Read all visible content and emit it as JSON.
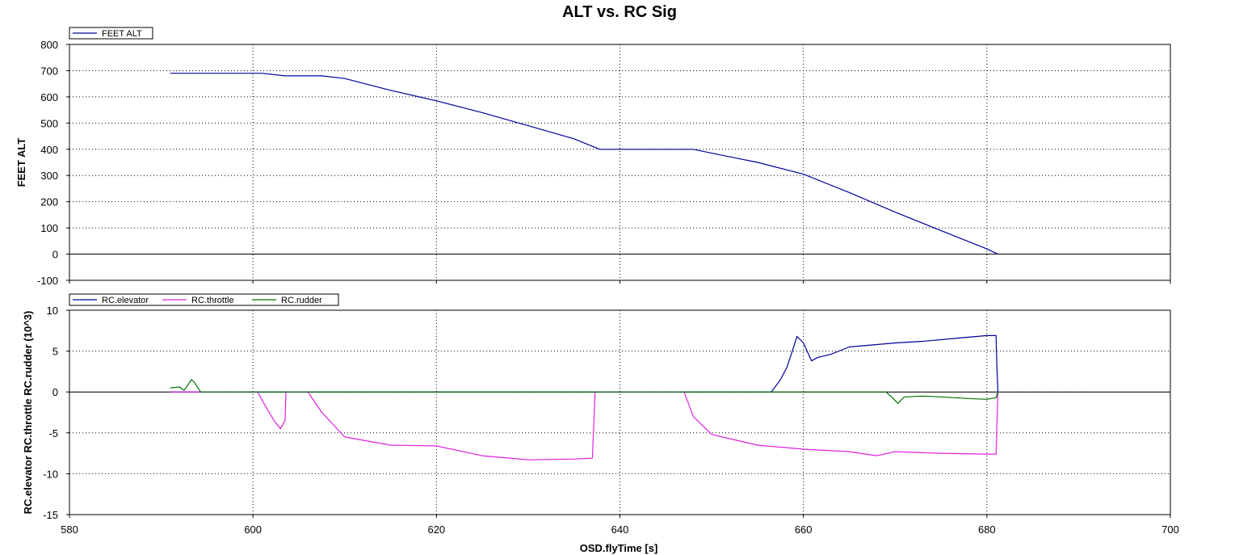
{
  "chart_data": {
    "type": "line",
    "title": "ALT vs. RC Sig",
    "xlabel": "OSD.flyTime [s]",
    "xlim": [
      580,
      700
    ],
    "xticks": [
      580,
      600,
      620,
      640,
      660,
      680,
      700
    ],
    "colors": {
      "elevator": "#000099",
      "throttle": "#e020e0",
      "rudder": "#007000",
      "alt": "#000099"
    },
    "panels": [
      {
        "ylabel": "FEET ALT",
        "ylim": [
          -100,
          800
        ],
        "yticks": [
          800,
          700,
          600,
          500,
          400,
          300,
          200,
          100,
          0,
          -100
        ],
        "legend_position": "top-left",
        "grid": true,
        "series": [
          {
            "name": "FEET ALT",
            "x": [
              591,
              601,
              603.5,
              607.5,
              610,
              615,
              620,
              625,
              630,
              635,
              637.8,
              648,
              650,
              655,
              660,
              665,
              670,
              675,
              680,
              681.2
            ],
            "y": [
              690,
              690,
              680,
              680,
              670,
              625,
              585,
              540,
              490,
              440,
              400,
              400,
              385,
              350,
              305,
              235,
              160,
              90,
              20,
              0
            ]
          }
        ]
      },
      {
        "ylabel": "RC.elevator RC.throttle RC.rudder (10^3)",
        "ylim": [
          -15,
          10
        ],
        "yticks": [
          10,
          5,
          0,
          -5,
          -10,
          -15
        ],
        "legend_position": "top-left",
        "grid": true,
        "series": [
          {
            "name": "RC.elevator",
            "x": [
              591,
              656.5,
              657.5,
              658.2,
              658.8,
              659.3,
              660,
              660.4,
              660.9,
              661.5,
              663,
              665,
              670,
              673,
              677,
              680,
              681,
              681.1,
              681.2
            ],
            "y": [
              0,
              0,
              1.5,
              3,
              5,
              6.8,
              6,
              5,
              3.8,
              4.2,
              4.6,
              5.5,
              6,
              6.2,
              6.6,
              6.9,
              6.9,
              3,
              0
            ]
          },
          {
            "name": "RC.throttle",
            "x": [
              591,
              600.5,
              601.5,
              602.3,
              603,
              603.5,
              603.6,
              606,
              607.5,
              610,
              615,
              620,
              625,
              630,
              635,
              637,
              637.3,
              647,
              648,
              650,
              655,
              660,
              665,
              668,
              670,
              675,
              680,
              681,
              681.2
            ],
            "y": [
              0,
              0,
              -2,
              -3.5,
              -4.5,
              -3.5,
              0,
              0,
              -2.5,
              -5.5,
              -6.5,
              -6.6,
              -7.8,
              -8.3,
              -8.2,
              -8.1,
              0,
              0,
              -3,
              -5.2,
              -6.5,
              -7,
              -7.3,
              -7.8,
              -7.3,
              -7.5,
              -7.6,
              -7.6,
              0
            ]
          },
          {
            "name": "RC.rudder",
            "x": [
              591,
              592,
              592.5,
              593,
              593.3,
              593.6,
              594,
              594.3,
              669,
              669.8,
              670.3,
              671,
              673,
              675,
              678,
              680,
              681,
              681.2
            ],
            "y": [
              0.5,
              0.6,
              0.2,
              1,
              1.5,
              1.2,
              0.5,
              0,
              0,
              -0.8,
              -1.4,
              -0.6,
              -0.5,
              -0.6,
              -0.8,
              -0.9,
              -0.7,
              0
            ]
          }
        ]
      }
    ]
  }
}
